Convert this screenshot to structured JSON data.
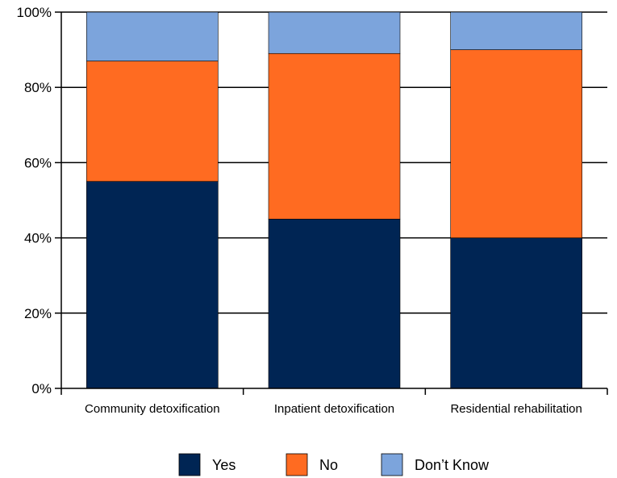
{
  "chart_data": {
    "type": "bar",
    "stacked": true,
    "categories": [
      "Community detoxification",
      "Inpatient detoxification",
      "Residential rehabilitation"
    ],
    "series": [
      {
        "name": "Yes",
        "color": "#002554",
        "values": [
          55,
          45,
          40
        ]
      },
      {
        "name": "No",
        "color": "#ff6b21",
        "values": [
          32,
          44,
          50
        ]
      },
      {
        "name": "Don’t Know",
        "color": "#7ca4dc",
        "values": [
          13,
          11,
          10
        ]
      }
    ],
    "title": "",
    "xlabel": "",
    "ylabel": "",
    "ylim": [
      0,
      100
    ],
    "yticks": [
      0,
      20,
      40,
      60,
      80,
      100
    ],
    "ytick_labels": [
      "0%",
      "20%",
      "40%",
      "60%",
      "80%",
      "100%"
    ],
    "grid": true,
    "legend_position": "bottom"
  }
}
